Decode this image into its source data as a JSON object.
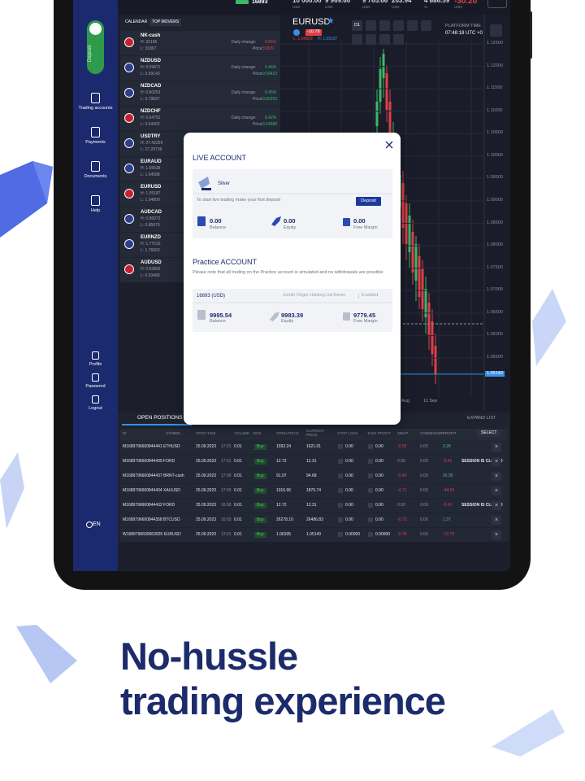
{
  "status_bar": {
    "account": "16893",
    "stats": [
      {
        "value": "10 000.00",
        "unit": "USD"
      },
      {
        "value": "9 969.60",
        "unit": "USD"
      },
      {
        "value": "9 765.66",
        "unit": "USD"
      },
      {
        "value": "203.94",
        "unit": "USD"
      },
      {
        "value": "4 886.59",
        "unit": "%"
      },
      {
        "value": "-30.20",
        "unit": "USD"
      }
    ]
  },
  "sidebar": {
    "deposit": "Deposit",
    "items": [
      "Trading accounts",
      "Payments",
      "Documents",
      "Help"
    ],
    "user_items": [
      "Profile",
      "Password",
      "Logout"
    ],
    "language": "EN"
  },
  "watchlist": {
    "tabs": [
      "CALENDAR",
      "TOP MOVERS"
    ],
    "items": [
      {
        "name": "NK-cash",
        "high": "H: 32165",
        "low": "L: 31867",
        "change_label": "Daily change:",
        "change": "0.86%",
        "color": "#e0404a",
        "price_label": "Price:",
        "price": "31829"
      },
      {
        "name": "NZDUSD",
        "high": "H: 0.59471",
        "low": "L: 0.59143",
        "change_label": "Daily change:",
        "change": "0.46%",
        "color": "#3cb868",
        "price_label": "Price:",
        "price": "0.59413"
      },
      {
        "name": "NZDCAD",
        "high": "H: 0.80253",
        "low": "L: 0.79837",
        "change_label": "Daily change:",
        "change": "0.45%",
        "color": "#3cb868",
        "price_label": "Price:",
        "price": "0.80203"
      },
      {
        "name": "NZDCHF",
        "high": "H: 0.54752",
        "low": "L: 0.54462",
        "change_label": "Daily change:",
        "change": "0.42%",
        "color": "#3cb868",
        "price_label": "Price:",
        "price": "0.54688"
      },
      {
        "name": "USDTRY",
        "high": "H: 27.42259",
        "low": "L: 27.29739"
      },
      {
        "name": "EURAUD",
        "high": "H: 1.65538",
        "low": "L: 1.64588"
      },
      {
        "name": "EURUSD",
        "high": "H: 1.05187",
        "low": "L: 1.04809"
      },
      {
        "name": "AUDCAD",
        "high": "H: 0.86073",
        "low": "L: 0.85670"
      },
      {
        "name": "EURNZD",
        "high": "H: 1.77610",
        "low": "L: 1.76603"
      },
      {
        "name": "AUDUSD",
        "high": "H: 0.63802",
        "low": "L: 0.63489"
      }
    ]
  },
  "chart": {
    "symbol": "EURUSD",
    "change": "-10.78",
    "low": "L: 1.04809",
    "high": "H: 1.05187",
    "timeframe": "D1",
    "platform_time_label": "PLATFORM TIME",
    "platform_time": "07:48:18 UTC +0",
    "price_ticks": [
      {
        "value": 1.125,
        "label": "1.12500"
      },
      {
        "value": 1.12,
        "label": "1.12000"
      },
      {
        "value": 1.115,
        "label": "1.11500"
      },
      {
        "value": 1.11,
        "label": "1.11000"
      },
      {
        "value": 1.105,
        "label": "1.10500"
      },
      {
        "value": 1.1,
        "label": "1.10000"
      },
      {
        "value": 1.095,
        "label": "1.09500"
      },
      {
        "value": 1.09,
        "label": "1.09000"
      },
      {
        "value": 1.085,
        "label": "1.08500"
      },
      {
        "value": 1.08,
        "label": "1.08000"
      },
      {
        "value": 1.075,
        "label": "1.07500"
      },
      {
        "value": 1.07,
        "label": "1.07000"
      },
      {
        "value": 1.065,
        "label": "1.06500"
      },
      {
        "value": 1.06,
        "label": "1.06000"
      },
      {
        "value": 1.055,
        "label": "1.05500"
      }
    ],
    "current_price": {
      "value": 1.0514,
      "label": "1.05140"
    },
    "date_labels": [
      "Aug",
      "11 Sep"
    ]
  },
  "modal": {
    "live_title": "LIVE ACCOUNT",
    "tier": "Silver",
    "live_note": "To start live trading make your first deposit",
    "deposit_button": "Deposit",
    "live_stats": [
      {
        "value": "0.00",
        "label": "Balance"
      },
      {
        "value": "0.00",
        "label": "Equity"
      },
      {
        "value": "0.00",
        "label": "Free Margin"
      }
    ],
    "practice_title": "Practice ACCOUNT",
    "practice_note": "Please note that all trading on the Practice account is simulated and no withdrawals are possible",
    "practice_account": "16893 (USD)",
    "practice_server": "Zenith Origin Holding Ltd-Demo",
    "practice_status": "Enabled",
    "practice_stats": [
      {
        "value": "9995.54",
        "label": "Balance"
      },
      {
        "value": "9983.39",
        "label": "Equity"
      },
      {
        "value": "9779.45",
        "label": "Free Margin"
      }
    ]
  },
  "positions": {
    "tab": "OPEN POSITIONS",
    "expand": "EXPAND LIST",
    "select": "SELECT",
    "columns": [
      "ID",
      "SYMBOL",
      "OPEN TIME",
      "VOLUME",
      "SIDE",
      "OPEN PRICE",
      "CURRENT PRICE",
      "STOP LOSS",
      "TAKE PROFIT",
      "SWAP",
      "COMMISSION",
      "PROFIT"
    ],
    "rows": [
      {
        "id_symbol": "M1689796600844441 ETHUSD",
        "open_date": "25.09.2023",
        "open_clock": "17:01",
        "volume": "0.01",
        "side": "Buy",
        "open_price": "1592.24",
        "current_price": "1621.01",
        "stop_loss": "0.00",
        "take_profit": "0.00",
        "swap": "-0.03",
        "commission": "0.00",
        "profit": "0.28"
      },
      {
        "id_symbol": "M1689796600844439 FORD",
        "open_date": "25.09.2023",
        "open_clock": "17:01",
        "volume": "0.01",
        "side": "Buy",
        "open_price": "12.72",
        "current_price": "12.31",
        "stop_loss": "0.00",
        "take_profit": "0.00",
        "swap": "0.00",
        "commission": "0.00",
        "profit": "-0.41",
        "status": "SESSION IS CLOSED"
      },
      {
        "id_symbol": "M1689796600844437 BRNT-cash",
        "open_date": "25.09.2023",
        "open_clock": "17:00",
        "volume": "0.01",
        "side": "Buy",
        "open_price": "91.97",
        "current_price": "94.68",
        "stop_loss": "0.00",
        "take_profit": "0.00",
        "swap": "-0.45",
        "commission": "0.00",
        "profit": "26.95"
      },
      {
        "id_symbol": "M1689796600844434 XAUUSD",
        "open_date": "25.09.2023",
        "open_clock": "17:00",
        "volume": "0.01",
        "side": "Buy",
        "open_price": "1916.96",
        "current_price": "1876.74",
        "stop_loss": "0.00",
        "take_profit": "0.00",
        "swap": "-4.71",
        "commission": "0.00",
        "profit": "-44.93"
      },
      {
        "id_symbol": "M1689796600844432 FORD",
        "open_date": "25.09.2023",
        "open_clock": "16:58",
        "volume": "0.01",
        "side": "Buy",
        "open_price": "12.72",
        "current_price": "12.31",
        "stop_loss": "0.00",
        "take_profit": "0.00",
        "swap": "0.00",
        "commission": "0.00",
        "profit": "-0.41",
        "status": "SESSION IS CLOSED"
      },
      {
        "id_symbol": "M1689796600844358 BTCUSD",
        "open_date": "25.09.2023",
        "open_clock": "16:03",
        "volume": "0.01",
        "side": "Buy",
        "open_price": "26278.10",
        "current_price": "26486.83",
        "stop_loss": "0.00",
        "take_profit": "0.00",
        "swap": "-0.72",
        "commission": "0.00",
        "profit": "1.37"
      },
      {
        "id_symbol": "W1689796600063925 EURUSD",
        "open_date": "25.09.2023",
        "open_clock": "12:01",
        "volume": "0.01",
        "side": "Buy",
        "open_price": "1.06335",
        "current_price": "1.05140",
        "stop_loss": "0.00000",
        "take_profit": "0.00000",
        "swap": "-0.78",
        "commission": "0.00",
        "profit": "-12.73"
      }
    ]
  },
  "headline": {
    "line1": "No-hussle",
    "line2": "trading experience"
  }
}
